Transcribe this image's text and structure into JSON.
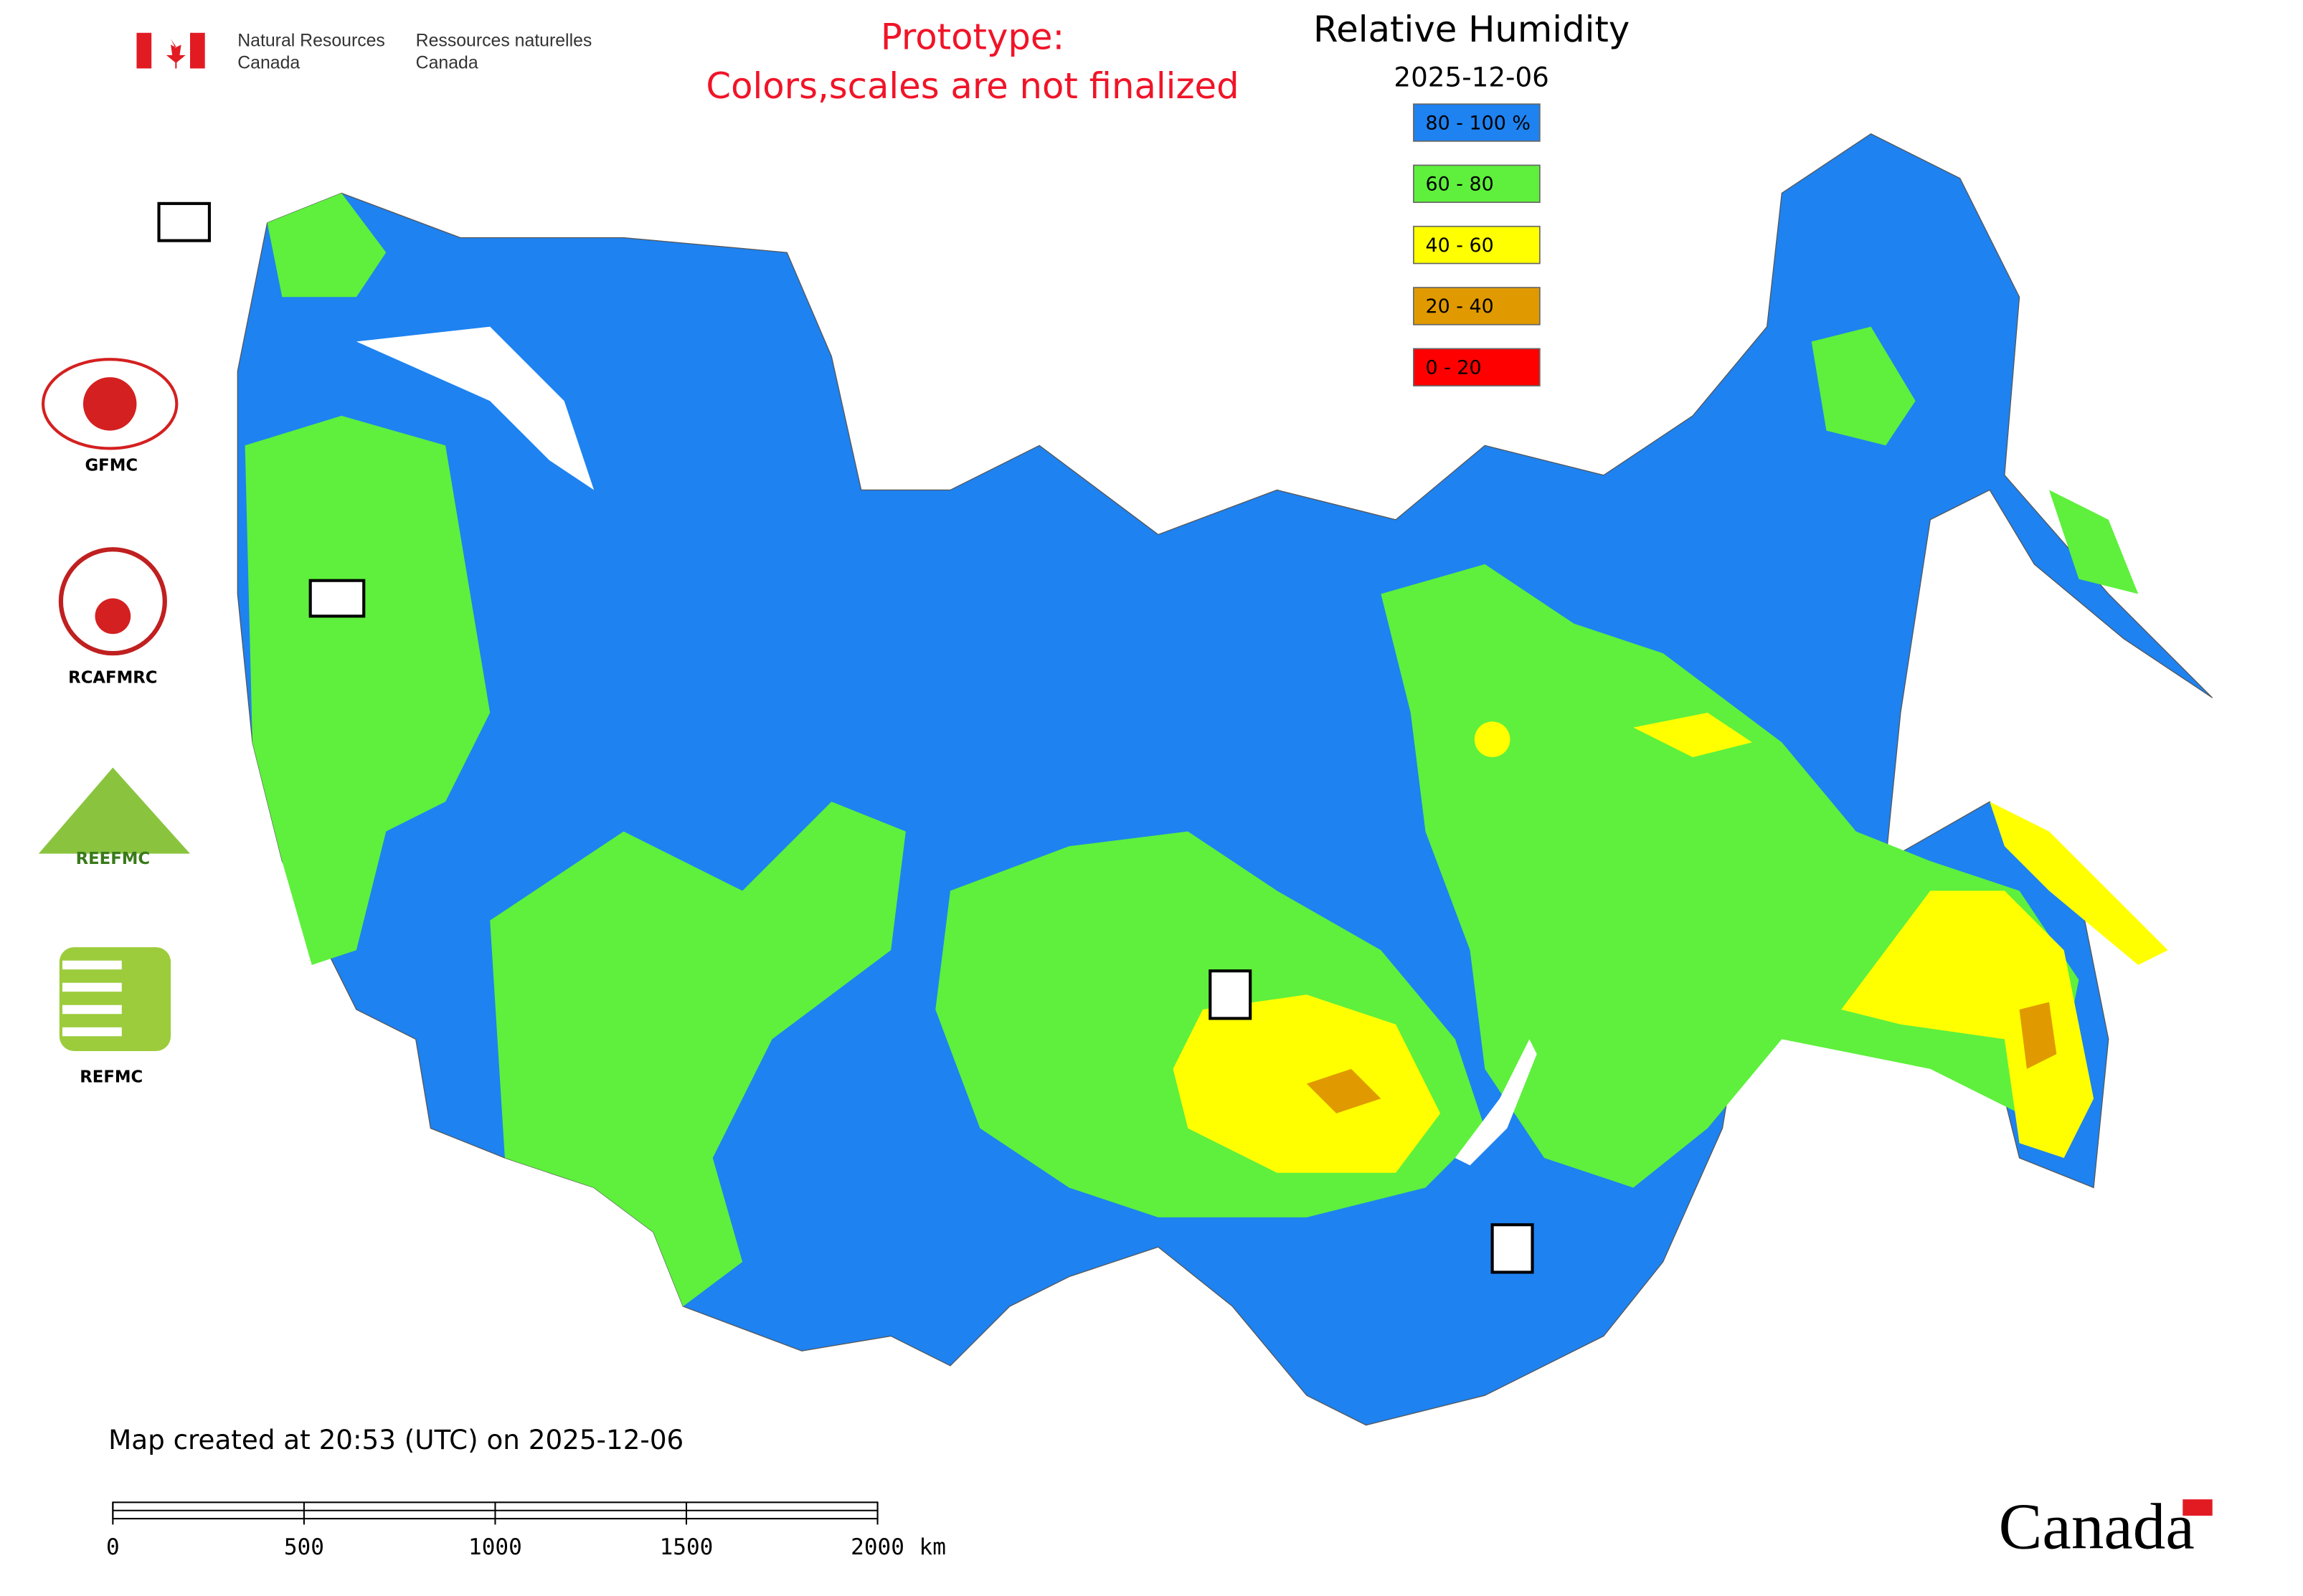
{
  "header": {
    "agency_en_1": "Natural Resources",
    "agency_en_2": "Canada",
    "agency_fr_1": "Ressources naturelles",
    "agency_fr_2": "Canada"
  },
  "notice": [
    "Prototype:",
    "Colors,scales are not finalized"
  ],
  "title": "Relative Humidity",
  "date": "2025-12-06",
  "legend": [
    {
      "label": "80 - 100 %",
      "color": "#1e82f0"
    },
    {
      "label": "60 - 80",
      "color": "#5ef03c"
    },
    {
      "label": "40 - 60",
      "color": "#ffff00"
    },
    {
      "label": "20 - 40",
      "color": "#e09a00"
    },
    {
      "label": "0 - 20",
      "color": "#ff0000"
    }
  ],
  "logos": [
    "GFMC",
    "RCAFMRC",
    "REEFMC",
    "REFMC"
  ],
  "footer": "Map created at 20:53 (UTC) on 2025-12-06",
  "scale_bar": {
    "ticks": [
      0,
      500,
      1000,
      1500,
      2000
    ],
    "unit": "km"
  },
  "wordmark": "Canada"
}
